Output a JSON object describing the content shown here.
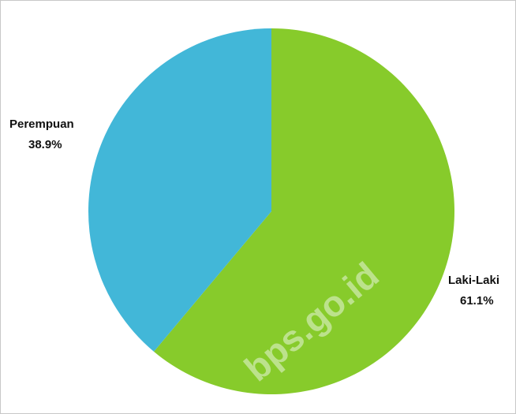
{
  "chart_data": {
    "type": "pie",
    "slices": [
      {
        "label": "Laki-Laki",
        "value": 61.1,
        "value_label": "61.1%",
        "color": "#87cb2b"
      },
      {
        "label": "Perempuan",
        "value": 38.9,
        "value_label": "38.9%",
        "color": "#42b7d8"
      }
    ],
    "start": "top",
    "direction": "clockwise",
    "legend": "none"
  },
  "watermark": "bps.go.id"
}
